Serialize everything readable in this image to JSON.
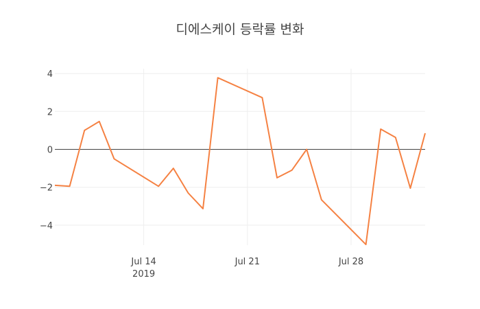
{
  "chart_data": {
    "type": "line",
    "title": "디에스케이 등락률 변화",
    "xlabel": "",
    "ylabel": "",
    "x": [
      "2019-07-08",
      "2019-07-09",
      "2019-07-10",
      "2019-07-11",
      "2019-07-12",
      "2019-07-15",
      "2019-07-16",
      "2019-07-17",
      "2019-07-18",
      "2019-07-19",
      "2019-07-22",
      "2019-07-23",
      "2019-07-24",
      "2019-07-25",
      "2019-07-26",
      "2019-07-29",
      "2019-07-30",
      "2019-07-31",
      "2019-08-01",
      "2019-08-02"
    ],
    "series": [
      {
        "name": "등락률",
        "color": "#f58142",
        "values": [
          -1.9,
          -1.95,
          1.0,
          1.47,
          -0.5,
          -1.95,
          -1.0,
          -2.3,
          -3.13,
          3.78,
          2.73,
          -1.5,
          -1.1,
          0.0,
          -2.66,
          -5.02,
          1.07,
          0.63,
          -2.05,
          0.85
        ]
      }
    ],
    "ylim": [
      -5.2,
      4.3
    ],
    "yticks": [
      4,
      2,
      0,
      -2,
      -4
    ],
    "ytick_labels": [
      "4",
      "2",
      "0",
      "−2",
      "−4"
    ],
    "xticks": [
      "2019-07-14",
      "2019-07-21",
      "2019-07-28"
    ],
    "xtick_labels": [
      "Jul 14",
      "Jul 21",
      "Jul 28"
    ],
    "xtick_sublabel": "2019",
    "grid": true,
    "legend": "none"
  }
}
